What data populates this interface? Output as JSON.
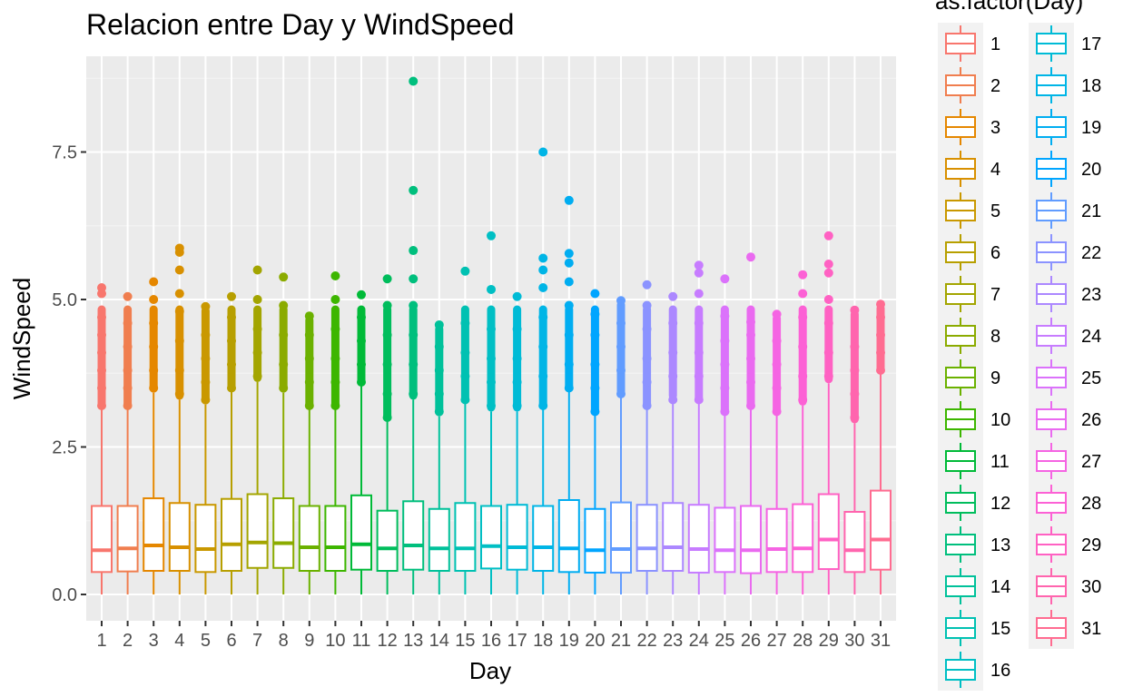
{
  "chart_data": {
    "type": "box",
    "title": "Relacion entre Day y WindSpeed",
    "xlabel": "Day",
    "ylabel": "WindSpeed",
    "ylim": [
      -0.4,
      9.0
    ],
    "yticks": [
      0.0,
      2.5,
      5.0,
      7.5
    ],
    "ytick_labels": [
      "0.0",
      "2.5",
      "5.0",
      "7.5"
    ],
    "grid": true,
    "legend_title": "as.factor(Day)",
    "legend_placement": "right",
    "categories": [
      "1",
      "2",
      "3",
      "4",
      "5",
      "6",
      "7",
      "8",
      "9",
      "10",
      "11",
      "12",
      "13",
      "14",
      "15",
      "16",
      "17",
      "18",
      "19",
      "20",
      "21",
      "22",
      "23",
      "24",
      "25",
      "26",
      "27",
      "28",
      "29",
      "30",
      "31"
    ],
    "colors": [
      "#F8766D",
      "#F07E4F",
      "#E58700",
      "#D89000",
      "#C99800",
      "#B79F00",
      "#A3A500",
      "#8BAB00",
      "#6BB100",
      "#3DB600",
      "#00BA38",
      "#00BD5C",
      "#00BF7D",
      "#00C19A",
      "#00C1B2",
      "#00BFC4",
      "#00BBD6",
      "#00B5E6",
      "#00ADF1",
      "#00A5FF",
      "#619CFF",
      "#8B93FF",
      "#AC88FF",
      "#C77CFF",
      "#DB72FB",
      "#EA6AF0",
      "#F564E3",
      "#FC61D5",
      "#FF61C3",
      "#FF65AE",
      "#FF6C91"
    ],
    "boxes": [
      {
        "day": "1",
        "min": 0.0,
        "q1": 0.38,
        "median": 0.75,
        "q3": 1.5,
        "upper_whisker": 3.15,
        "outlier_max": 5.2,
        "outliers_sample": [
          3.2,
          3.5,
          3.8,
          4.1,
          4.4,
          4.7,
          5.1,
          5.2
        ]
      },
      {
        "day": "2",
        "min": 0.0,
        "q1": 0.39,
        "median": 0.78,
        "q3": 1.5,
        "upper_whisker": 3.15,
        "outlier_max": 5.05,
        "outliers_sample": [
          3.2,
          3.5,
          3.8,
          4.2,
          4.6,
          5.05
        ]
      },
      {
        "day": "3",
        "min": 0.0,
        "q1": 0.4,
        "median": 0.83,
        "q3": 1.63,
        "upper_whisker": 3.42,
        "outlier_max": 5.3,
        "outliers_sample": [
          3.5,
          3.8,
          4.2,
          4.6,
          5.0,
          5.3
        ]
      },
      {
        "day": "4",
        "min": 0.0,
        "q1": 0.4,
        "median": 0.8,
        "q3": 1.55,
        "upper_whisker": 3.3,
        "outlier_max": 5.87,
        "outliers_sample": [
          3.4,
          3.8,
          4.3,
          4.8,
          5.1,
          5.5,
          5.8,
          5.87
        ]
      },
      {
        "day": "5",
        "min": 0.0,
        "q1": 0.38,
        "median": 0.77,
        "q3": 1.52,
        "upper_whisker": 3.22,
        "outlier_max": 4.88,
        "outliers_sample": [
          3.3,
          3.6,
          4.0,
          4.4,
          4.88
        ]
      },
      {
        "day": "6",
        "min": 0.0,
        "q1": 0.4,
        "median": 0.85,
        "q3": 1.62,
        "upper_whisker": 3.45,
        "outlier_max": 5.05,
        "outliers_sample": [
          3.5,
          3.9,
          4.3,
          4.7,
          5.05
        ]
      },
      {
        "day": "7",
        "min": 0.0,
        "q1": 0.45,
        "median": 0.88,
        "q3": 1.7,
        "upper_whisker": 3.6,
        "outlier_max": 5.5,
        "outliers_sample": [
          3.7,
          4.1,
          4.5,
          5.0,
          5.5
        ]
      },
      {
        "day": "8",
        "min": 0.0,
        "q1": 0.45,
        "median": 0.87,
        "q3": 1.63,
        "upper_whisker": 3.42,
        "outlier_max": 5.38,
        "outliers_sample": [
          3.5,
          3.9,
          4.4,
          4.9,
          5.38
        ]
      },
      {
        "day": "9",
        "min": 0.0,
        "q1": 0.4,
        "median": 0.8,
        "q3": 1.5,
        "upper_whisker": 3.15,
        "outlier_max": 4.72,
        "outliers_sample": [
          3.2,
          3.6,
          4.0,
          4.4,
          4.72
        ]
      },
      {
        "day": "10",
        "min": 0.0,
        "q1": 0.4,
        "median": 0.8,
        "q3": 1.5,
        "upper_whisker": 3.15,
        "outlier_max": 5.4,
        "outliers_sample": [
          3.2,
          3.6,
          4.0,
          4.5,
          5.0,
          5.4
        ]
      },
      {
        "day": "11",
        "min": 0.0,
        "q1": 0.42,
        "median": 0.85,
        "q3": 1.68,
        "upper_whisker": 3.55,
        "outlier_max": 5.08,
        "outliers_sample": [
          3.6,
          3.9,
          4.3,
          4.7,
          5.08
        ]
      },
      {
        "day": "12",
        "min": 0.0,
        "q1": 0.4,
        "median": 0.78,
        "q3": 1.42,
        "upper_whisker": 2.95,
        "outlier_max": 5.35,
        "outliers_sample": [
          3.0,
          3.4,
          3.9,
          4.4,
          4.9,
          5.35
        ]
      },
      {
        "day": "13",
        "min": 0.0,
        "q1": 0.42,
        "median": 0.83,
        "q3": 1.58,
        "upper_whisker": 3.3,
        "outlier_max": 8.7,
        "outliers_sample": [
          3.4,
          3.9,
          4.4,
          4.9,
          5.35,
          5.83,
          6.85,
          8.7
        ]
      },
      {
        "day": "14",
        "min": 0.0,
        "q1": 0.4,
        "median": 0.78,
        "q3": 1.45,
        "upper_whisker": 3.02,
        "outlier_max": 4.57,
        "outliers_sample": [
          3.1,
          3.4,
          3.8,
          4.2,
          4.57
        ]
      },
      {
        "day": "15",
        "min": 0.0,
        "q1": 0.4,
        "median": 0.78,
        "q3": 1.55,
        "upper_whisker": 3.25,
        "outlier_max": 5.48,
        "outliers_sample": [
          3.3,
          3.7,
          4.1,
          4.6,
          5.48
        ]
      },
      {
        "day": "16",
        "min": 0.0,
        "q1": 0.44,
        "median": 0.82,
        "q3": 1.5,
        "upper_whisker": 3.1,
        "outlier_max": 6.08,
        "outliers_sample": [
          3.2,
          3.6,
          4.0,
          4.5,
          5.17,
          6.08
        ]
      },
      {
        "day": "17",
        "min": 0.0,
        "q1": 0.42,
        "median": 0.8,
        "q3": 1.52,
        "upper_whisker": 3.1,
        "outlier_max": 5.05,
        "outliers_sample": [
          3.2,
          3.6,
          4.0,
          4.5,
          5.05
        ]
      },
      {
        "day": "18",
        "min": 0.0,
        "q1": 0.4,
        "median": 0.8,
        "q3": 1.5,
        "upper_whisker": 3.15,
        "outlier_max": 7.5,
        "outliers_sample": [
          3.2,
          3.7,
          4.2,
          4.7,
          5.2,
          5.5,
          5.7,
          7.5
        ]
      },
      {
        "day": "19",
        "min": 0.0,
        "q1": 0.38,
        "median": 0.78,
        "q3": 1.6,
        "upper_whisker": 3.45,
        "outlier_max": 6.68,
        "outliers_sample": [
          3.5,
          3.9,
          4.4,
          4.9,
          5.3,
          5.62,
          5.78,
          6.68
        ]
      },
      {
        "day": "20",
        "min": 0.0,
        "q1": 0.37,
        "median": 0.75,
        "q3": 1.45,
        "upper_whisker": 3.05,
        "outlier_max": 5.1,
        "outliers_sample": [
          3.1,
          3.5,
          3.9,
          4.4,
          4.75,
          5.1
        ]
      },
      {
        "day": "21",
        "min": 0.0,
        "q1": 0.37,
        "median": 0.77,
        "q3": 1.56,
        "upper_whisker": 3.35,
        "outlier_max": 4.98,
        "outliers_sample": [
          3.4,
          3.8,
          4.2,
          4.6,
          4.98
        ]
      },
      {
        "day": "22",
        "min": 0.0,
        "q1": 0.4,
        "median": 0.78,
        "q3": 1.52,
        "upper_whisker": 3.15,
        "outlier_max": 5.25,
        "outliers_sample": [
          3.2,
          3.6,
          4.0,
          4.5,
          4.9,
          5.25
        ]
      },
      {
        "day": "23",
        "min": 0.0,
        "q1": 0.4,
        "median": 0.8,
        "q3": 1.55,
        "upper_whisker": 3.3,
        "outlier_max": 5.05,
        "outliers_sample": [
          3.3,
          3.7,
          4.1,
          4.6,
          5.05
        ]
      },
      {
        "day": "24",
        "min": 0.0,
        "q1": 0.37,
        "median": 0.77,
        "q3": 1.52,
        "upper_whisker": 3.25,
        "outlier_max": 5.58,
        "outliers_sample": [
          3.3,
          3.7,
          4.1,
          4.6,
          5.1,
          5.45,
          5.58
        ]
      },
      {
        "day": "25",
        "min": 0.0,
        "q1": 0.38,
        "median": 0.75,
        "q3": 1.47,
        "upper_whisker": 3.05,
        "outlier_max": 5.35,
        "outliers_sample": [
          3.1,
          3.5,
          3.9,
          4.3,
          4.72,
          5.35
        ]
      },
      {
        "day": "26",
        "min": 0.0,
        "q1": 0.36,
        "median": 0.75,
        "q3": 1.5,
        "upper_whisker": 3.15,
        "outlier_max": 5.72,
        "outliers_sample": [
          3.2,
          3.6,
          4.0,
          4.4,
          4.62,
          5.72
        ]
      },
      {
        "day": "27",
        "min": 0.0,
        "q1": 0.38,
        "median": 0.77,
        "q3": 1.45,
        "upper_whisker": 3.05,
        "outlier_max": 4.75,
        "outliers_sample": [
          3.1,
          3.5,
          3.9,
          4.3,
          4.75
        ]
      },
      {
        "day": "28",
        "min": 0.0,
        "q1": 0.38,
        "median": 0.78,
        "q3": 1.53,
        "upper_whisker": 3.2,
        "outlier_max": 5.42,
        "outliers_sample": [
          3.3,
          3.7,
          4.2,
          4.7,
          5.1,
          5.42
        ]
      },
      {
        "day": "29",
        "min": 0.0,
        "q1": 0.43,
        "median": 0.93,
        "q3": 1.7,
        "upper_whisker": 3.58,
        "outlier_max": 6.08,
        "outliers_sample": [
          3.7,
          4.1,
          4.6,
          5.0,
          5.45,
          5.6,
          6.08
        ]
      },
      {
        "day": "30",
        "min": 0.0,
        "q1": 0.38,
        "median": 0.75,
        "q3": 1.4,
        "upper_whisker": 2.9,
        "outlier_max": 4.82,
        "outliers_sample": [
          3.0,
          3.4,
          3.8,
          4.2,
          4.82
        ]
      },
      {
        "day": "31",
        "min": 0.0,
        "q1": 0.42,
        "median": 0.93,
        "q3": 1.76,
        "upper_whisker": 3.75,
        "outlier_max": 4.92,
        "outliers_sample": [
          3.8,
          4.1,
          4.4,
          4.7,
          4.92
        ]
      }
    ]
  }
}
